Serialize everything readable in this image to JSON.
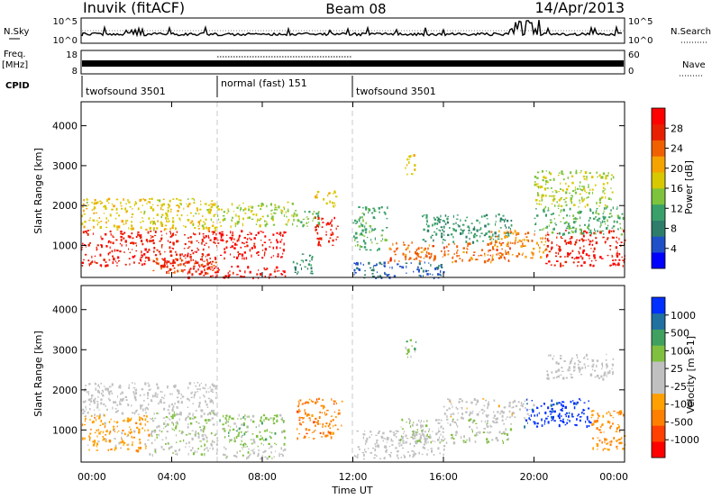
{
  "header": {
    "station": "Inuvik (fitACF)",
    "beam": "Beam 08",
    "date": "14/Apr/2013"
  },
  "noise_panel": {
    "left_label": "N.Sky",
    "left_ticks": [
      "10^5",
      "10^0"
    ],
    "right_ticks": [
      "10^5",
      "10^0"
    ],
    "right_label": "N.Search"
  },
  "freq_panel": {
    "left_label_1": "Freq.",
    "left_label_2": "[MHz]",
    "left_ticks": [
      "18",
      "8"
    ],
    "right_ticks": [
      "60",
      "0"
    ],
    "right_label": "Nave"
  },
  "cpid": {
    "label": "CPID",
    "segments": [
      {
        "label": "twofsound 3501",
        "start_h": 0,
        "end_h": 6
      },
      {
        "label": "normal (fast) 151",
        "start_h": 6,
        "end_h": 12
      },
      {
        "label": "twofsound 3501",
        "start_h": 12,
        "end_h": 24
      }
    ]
  },
  "chart_data": [
    {
      "type": "heatmap",
      "title": "",
      "xlabel": "",
      "ylabel": "Slant Range [km]",
      "x_unit": "hours UT",
      "xlim": [
        0,
        24
      ],
      "ylim": [
        200,
        4600
      ],
      "yticks": [
        1000,
        2000,
        3000,
        4000
      ],
      "colorbar": {
        "label": "Power [dB]",
        "ticks": [
          "28",
          "24",
          "20",
          "16",
          "12",
          "8",
          "4"
        ],
        "range": [
          0,
          32
        ],
        "colors": [
          "#0000ff",
          "#2050c8",
          "#2e7d6a",
          "#3aa06a",
          "#7dc43c",
          "#d8c800",
          "#f5a300",
          "#f06000",
          "#e82000",
          "#ff0000"
        ]
      },
      "blobs": [
        {
          "x0": 0.0,
          "x1": 6.0,
          "y0": 500,
          "y1": 1400,
          "v": 28
        },
        {
          "x0": 0.0,
          "x1": 6.0,
          "y0": 1400,
          "y1": 2200,
          "v": 18
        },
        {
          "x0": 3.0,
          "x1": 6.0,
          "y0": 300,
          "y1": 700,
          "v": 26
        },
        {
          "x0": 4.5,
          "x1": 9.0,
          "y0": 200,
          "y1": 500,
          "v": 30
        },
        {
          "x0": 6.0,
          "x1": 9.0,
          "y0": 700,
          "y1": 1400,
          "v": 30
        },
        {
          "x0": 6.0,
          "x1": 9.5,
          "y0": 1500,
          "y1": 2100,
          "v": 16
        },
        {
          "x0": 9.2,
          "x1": 10.2,
          "y0": 300,
          "y1": 800,
          "v": 10
        },
        {
          "x0": 9.3,
          "x1": 10.5,
          "y0": 1400,
          "y1": 1900,
          "v": 14
        },
        {
          "x0": 10.3,
          "x1": 11.3,
          "y0": 1000,
          "y1": 1800,
          "v": 28
        },
        {
          "x0": 10.3,
          "x1": 11.3,
          "y0": 2000,
          "y1": 2400,
          "v": 18
        },
        {
          "x0": 12.0,
          "x1": 13.5,
          "y0": 900,
          "y1": 2000,
          "v": 12
        },
        {
          "x0": 12.0,
          "x1": 16.0,
          "y0": 200,
          "y1": 600,
          "v": 6
        },
        {
          "x0": 13.5,
          "x1": 19.0,
          "y0": 600,
          "y1": 1100,
          "v": 24
        },
        {
          "x0": 15.0,
          "x1": 19.0,
          "y0": 1100,
          "y1": 1800,
          "v": 10
        },
        {
          "x0": 18.0,
          "x1": 20.5,
          "y0": 700,
          "y1": 1400,
          "v": 22
        },
        {
          "x0": 20.5,
          "x1": 24.0,
          "y0": 500,
          "y1": 1400,
          "v": 28
        },
        {
          "x0": 20.0,
          "x1": 24.0,
          "y0": 1300,
          "y1": 2000,
          "v": 12
        },
        {
          "x0": 20.0,
          "x1": 23.5,
          "y0": 2000,
          "y1": 2900,
          "v": 16
        },
        {
          "x0": 14.3,
          "x1": 14.8,
          "y0": 2800,
          "y1": 3300,
          "v": 18
        }
      ]
    },
    {
      "type": "heatmap",
      "title": "",
      "xlabel": "Time UT",
      "ylabel": "Slant Range [km]",
      "x_unit": "hours UT",
      "xlim": [
        0,
        24
      ],
      "ylim": [
        200,
        4600
      ],
      "yticks": [
        1000,
        2000,
        3000,
        4000
      ],
      "xticks": [
        "00:00",
        "04:00",
        "08:00",
        "12:00",
        "16:00",
        "20:00",
        "00:00"
      ],
      "colorbar": {
        "label": "Velocity [m s-1]",
        "ticks": [
          "1000",
          "500",
          "100",
          "25",
          "-25",
          "-100",
          "-500",
          "-1000"
        ],
        "range": [
          -1000,
          1000
        ],
        "colors": [
          "#ff0000",
          "#ff4000",
          "#ff8000",
          "#ffa000",
          "#c0c0c0",
          "#c0c0c0",
          "#80c040",
          "#40a060",
          "#2070a0",
          "#0030ff"
        ]
      },
      "blobs": [
        {
          "x0": 0.0,
          "x1": 3.0,
          "y0": 500,
          "y1": 1400,
          "v": -300
        },
        {
          "x0": 0.0,
          "x1": 6.0,
          "y0": 1400,
          "y1": 2200,
          "v": 0
        },
        {
          "x0": 3.0,
          "x1": 6.0,
          "y0": 400,
          "y1": 1500,
          "v": 150
        },
        {
          "x0": 6.0,
          "x1": 9.0,
          "y0": 600,
          "y1": 1400,
          "v": 300
        },
        {
          "x0": 6.0,
          "x1": 9.0,
          "y0": 300,
          "y1": 600,
          "v": 100
        },
        {
          "x0": 9.5,
          "x1": 11.5,
          "y0": 800,
          "y1": 1800,
          "v": -500
        },
        {
          "x0": 12.0,
          "x1": 16.0,
          "y0": 300,
          "y1": 1000,
          "v": 60
        },
        {
          "x0": 14.0,
          "x1": 19.0,
          "y0": 700,
          "y1": 1300,
          "v": 150
        },
        {
          "x0": 16.0,
          "x1": 20.0,
          "y0": 1300,
          "y1": 1800,
          "v": -80
        },
        {
          "x0": 19.5,
          "x1": 22.5,
          "y0": 1100,
          "y1": 1800,
          "v": 900
        },
        {
          "x0": 22.5,
          "x1": 24.0,
          "y0": 500,
          "y1": 1500,
          "v": -400
        },
        {
          "x0": 20.5,
          "x1": 23.5,
          "y0": 2300,
          "y1": 2900,
          "v": 0
        },
        {
          "x0": 14.3,
          "x1": 14.8,
          "y0": 2800,
          "y1": 3300,
          "v": 300
        }
      ]
    }
  ],
  "colors": {
    "gate_line": "#c8c8c8",
    "axis": "#000000"
  }
}
